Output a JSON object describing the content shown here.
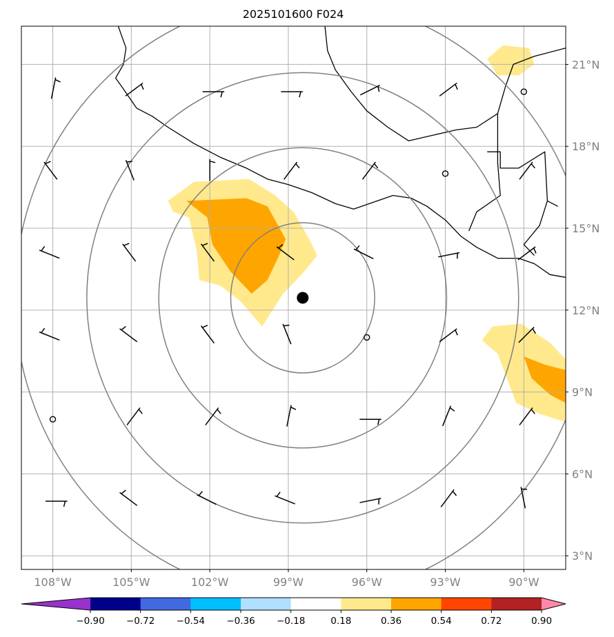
{
  "title": "2025101600 F024",
  "map": {
    "lon_range": [
      -109.2,
      -88.4
    ],
    "lat_range": [
      2.5,
      22.4
    ],
    "lon_ticks": [
      {
        "value": -108,
        "label": "108°W"
      },
      {
        "value": -105,
        "label": "105°W"
      },
      {
        "value": -102,
        "label": "102°W"
      },
      {
        "value": -99,
        "label": "99°W"
      },
      {
        "value": -96,
        "label": "96°W"
      },
      {
        "value": -93,
        "label": "93°W"
      },
      {
        "value": -90,
        "label": "90°W"
      }
    ],
    "lat_ticks": [
      {
        "value": 3,
        "label": "3°N"
      },
      {
        "value": 6,
        "label": "6°N"
      },
      {
        "value": 9,
        "label": "9°N"
      },
      {
        "value": 12,
        "label": "12°N"
      },
      {
        "value": 15,
        "label": "15°N"
      },
      {
        "value": 18,
        "label": "18°N"
      },
      {
        "value": 21,
        "label": "21°N"
      }
    ],
    "gridlines": true,
    "storm_center": {
      "lon": -98.45,
      "lat": 12.45
    },
    "range_rings_deg": [
      2.75,
      5.5,
      8.25,
      11.0
    ],
    "colors": {
      "coast": "#000000",
      "ring": "#808080",
      "grid": "#b0b0b0"
    }
  },
  "colorbar": {
    "ticks": [
      "−0.90",
      "−0.72",
      "−0.54",
      "−0.36",
      "−0.18",
      "0.18",
      "0.36",
      "0.54",
      "0.72",
      "0.90"
    ],
    "colors": [
      "#9932cc",
      "#00008b",
      "#4169e1",
      "#00bfff",
      "#b0e0ff",
      "#ffffff",
      "#ffe98c",
      "#ffa500",
      "#ff4500",
      "#b22222",
      "#ff88aa"
    ]
  },
  "chart_data": {
    "type": "map",
    "fields": [
      {
        "level": "0.18–0.36",
        "color": "#ffe98c",
        "polygon": [
          [
            -103.6,
            16.0
          ],
          [
            -102.6,
            16.7
          ],
          [
            -100.5,
            16.8
          ],
          [
            -99.5,
            16.2
          ],
          [
            -98.8,
            15.6
          ],
          [
            -98.2,
            14.6
          ],
          [
            -97.9,
            14.0
          ],
          [
            -98.4,
            13.4
          ],
          [
            -99.2,
            12.6
          ],
          [
            -99.6,
            12.0
          ],
          [
            -100.0,
            11.4
          ],
          [
            -100.8,
            12.3
          ],
          [
            -101.6,
            12.9
          ],
          [
            -102.4,
            13.1
          ],
          [
            -102.5,
            14.2
          ],
          [
            -102.8,
            15.4
          ],
          [
            -103.4,
            15.6
          ]
        ]
      },
      {
        "level": "0.36–0.54",
        "color": "#ffa500",
        "polygon": [
          [
            -102.9,
            16.0
          ],
          [
            -100.6,
            16.1
          ],
          [
            -99.8,
            15.8
          ],
          [
            -99.1,
            14.6
          ],
          [
            -99.4,
            13.9
          ],
          [
            -99.8,
            13.1
          ],
          [
            -100.4,
            12.6
          ],
          [
            -101.2,
            13.4
          ],
          [
            -101.9,
            14.4
          ],
          [
            -102.1,
            15.4
          ]
        ]
      },
      {
        "level": "0.18–0.36",
        "color": "#ffe98c",
        "polygon": [
          [
            -91.2,
            11.4
          ],
          [
            -90.1,
            11.5
          ],
          [
            -89.0,
            10.8
          ],
          [
            -88.4,
            10.2
          ],
          [
            -88.4,
            7.9
          ],
          [
            -89.4,
            8.2
          ],
          [
            -90.3,
            8.6
          ],
          [
            -90.6,
            9.4
          ],
          [
            -91.0,
            10.4
          ],
          [
            -91.6,
            10.9
          ]
        ]
      },
      {
        "level": "0.36–0.54",
        "color": "#ffa500",
        "polygon": [
          [
            -90.0,
            10.3
          ],
          [
            -89.2,
            10.0
          ],
          [
            -88.4,
            9.8
          ],
          [
            -88.4,
            8.6
          ],
          [
            -89.0,
            8.9
          ],
          [
            -89.7,
            9.5
          ]
        ]
      },
      {
        "level": "0.18–0.36",
        "color": "#ffe98c",
        "polygon": [
          [
            -91.4,
            21.2
          ],
          [
            -90.8,
            21.7
          ],
          [
            -89.8,
            21.6
          ],
          [
            -89.6,
            21.0
          ],
          [
            -90.2,
            20.6
          ],
          [
            -91.0,
            20.6
          ]
        ]
      }
    ],
    "wind_barbs": [
      {
        "lon": -108,
        "lat": 20,
        "u": 1,
        "v": 5,
        "calm": false
      },
      {
        "lon": -105,
        "lat": 20,
        "u": 4,
        "v": 3,
        "calm": false
      },
      {
        "lon": -102,
        "lat": 20,
        "u": 5,
        "v": 0,
        "calm": false
      },
      {
        "lon": -99,
        "lat": 20,
        "u": 5,
        "v": 0,
        "calm": false
      },
      {
        "lon": -96,
        "lat": 20,
        "u": 4,
        "v": 2,
        "calm": false
      },
      {
        "lon": -93,
        "lat": 20,
        "u": 4,
        "v": 3,
        "calm": false
      },
      {
        "lon": -90,
        "lat": 20,
        "calm": true
      },
      {
        "lon": -108,
        "lat": 17,
        "u": -3,
        "v": 4,
        "calm": false
      },
      {
        "lon": -105,
        "lat": 17,
        "u": -2,
        "v": 5,
        "calm": false
      },
      {
        "lon": -102,
        "lat": 17,
        "u": 0,
        "v": 5,
        "calm": false
      },
      {
        "lon": -99,
        "lat": 17,
        "u": 3,
        "v": 4,
        "calm": false
      },
      {
        "lon": -96,
        "lat": 17,
        "u": 3,
        "v": 4,
        "calm": false
      },
      {
        "lon": -93,
        "lat": 17,
        "calm": true
      },
      {
        "lon": -90,
        "lat": 17,
        "u": 3,
        "v": 4,
        "calm": false
      },
      {
        "lon": -108,
        "lat": 14,
        "u": -5,
        "v": 2,
        "calm": false
      },
      {
        "lon": -105,
        "lat": 14,
        "u": -3,
        "v": 4,
        "calm": false
      },
      {
        "lon": -102,
        "lat": 14,
        "u": -3,
        "v": 4,
        "calm": false
      },
      {
        "lon": -99,
        "lat": 14,
        "u": -4,
        "v": 3,
        "calm": false
      },
      {
        "lon": -96,
        "lat": 14,
        "u": -4,
        "v": 2,
        "calm": false
      },
      {
        "lon": -93,
        "lat": 14,
        "u": 5,
        "v": 1,
        "calm": false
      },
      {
        "lon": -90,
        "lat": 14,
        "u": 4,
        "v": 3,
        "calm": false
      },
      {
        "lon": -108,
        "lat": 11,
        "u": -5,
        "v": 2,
        "calm": false
      },
      {
        "lon": -105,
        "lat": 11,
        "u": -4,
        "v": 3,
        "calm": false
      },
      {
        "lon": -102,
        "lat": 11,
        "u": -3,
        "v": 4,
        "calm": false
      },
      {
        "lon": -99,
        "lat": 11,
        "u": -2,
        "v": 5,
        "calm": false
      },
      {
        "lon": -96,
        "lat": 11,
        "calm": true
      },
      {
        "lon": -93,
        "lat": 11,
        "u": 4,
        "v": 3,
        "calm": false
      },
      {
        "lon": -90,
        "lat": 11,
        "u": 4,
        "v": 4,
        "calm": false
      },
      {
        "lon": -108,
        "lat": 8,
        "calm": true
      },
      {
        "lon": -105,
        "lat": 8,
        "u": 3,
        "v": 4,
        "calm": false
      },
      {
        "lon": -102,
        "lat": 8,
        "u": 3,
        "v": 4,
        "calm": false
      },
      {
        "lon": -99,
        "lat": 8,
        "u": 1,
        "v": 5,
        "calm": false
      },
      {
        "lon": -96,
        "lat": 8,
        "u": 5,
        "v": 0,
        "calm": false
      },
      {
        "lon": -93,
        "lat": 8,
        "u": 2,
        "v": 5,
        "calm": false
      },
      {
        "lon": -90,
        "lat": 8,
        "u": 3,
        "v": 4,
        "calm": false
      },
      {
        "lon": -108,
        "lat": 5,
        "u": 5,
        "v": 0,
        "calm": false
      },
      {
        "lon": -105,
        "lat": 5,
        "u": -4,
        "v": 3,
        "calm": false
      },
      {
        "lon": -102,
        "lat": 5,
        "u": -4,
        "v": 2,
        "calm": false
      },
      {
        "lon": -99,
        "lat": 5,
        "u": -5,
        "v": 2,
        "calm": false
      },
      {
        "lon": -96,
        "lat": 5,
        "u": 5,
        "v": 1,
        "calm": false
      },
      {
        "lon": -93,
        "lat": 5,
        "u": 3,
        "v": 4,
        "calm": false
      },
      {
        "lon": -90,
        "lat": 5,
        "u": -1,
        "v": 5,
        "calm": false
      }
    ],
    "coastlines": [
      [
        [
          -105.5,
          22.4
        ],
        [
          -105.2,
          21.6
        ],
        [
          -105.3,
          21.0
        ],
        [
          -105.6,
          20.5
        ],
        [
          -105.3,
          20.1
        ],
        [
          -104.8,
          19.4
        ],
        [
          -104.2,
          19.1
        ],
        [
          -103.6,
          18.7
        ],
        [
          -102.6,
          18.1
        ],
        [
          -101.6,
          17.6
        ],
        [
          -100.6,
          17.2
        ],
        [
          -99.8,
          16.8
        ],
        [
          -99.0,
          16.6
        ],
        [
          -98.1,
          16.3
        ],
        [
          -97.2,
          15.9
        ],
        [
          -96.5,
          15.7
        ],
        [
          -95.6,
          16.0
        ],
        [
          -95.0,
          16.2
        ],
        [
          -94.3,
          16.1
        ],
        [
          -93.7,
          15.8
        ],
        [
          -93.0,
          15.3
        ],
        [
          -92.4,
          14.7
        ],
        [
          -91.8,
          14.3
        ],
        [
          -91.0,
          13.9
        ],
        [
          -90.2,
          13.9
        ],
        [
          -89.6,
          13.7
        ],
        [
          -89.0,
          13.3
        ],
        [
          -88.4,
          13.2
        ]
      ],
      [
        [
          -97.6,
          22.4
        ],
        [
          -97.5,
          21.5
        ],
        [
          -97.2,
          20.8
        ],
        [
          -96.6,
          20.0
        ],
        [
          -96.0,
          19.3
        ],
        [
          -95.2,
          18.7
        ],
        [
          -94.4,
          18.2
        ],
        [
          -93.5,
          18.4
        ],
        [
          -92.6,
          18.6
        ],
        [
          -91.8,
          18.7
        ],
        [
          -91.0,
          19.2
        ],
        [
          -90.7,
          20.2
        ],
        [
          -90.4,
          21.0
        ],
        [
          -89.6,
          21.3
        ],
        [
          -88.4,
          21.6
        ]
      ],
      [
        [
          -91.4,
          17.8
        ],
        [
          -90.9,
          17.8
        ],
        [
          -90.9,
          17.2
        ],
        [
          -90.2,
          17.2
        ],
        [
          -89.2,
          17.8
        ],
        [
          -89.1,
          16.0
        ],
        [
          -88.7,
          15.8
        ]
      ],
      [
        [
          -89.1,
          16.0
        ],
        [
          -89.4,
          15.1
        ],
        [
          -90.0,
          14.4
        ],
        [
          -89.6,
          14.0
        ]
      ],
      [
        [
          -91.0,
          19.2
        ],
        [
          -91.0,
          17.4
        ],
        [
          -90.9,
          16.2
        ],
        [
          -91.8,
          15.6
        ],
        [
          -92.1,
          14.9
        ]
      ]
    ]
  }
}
